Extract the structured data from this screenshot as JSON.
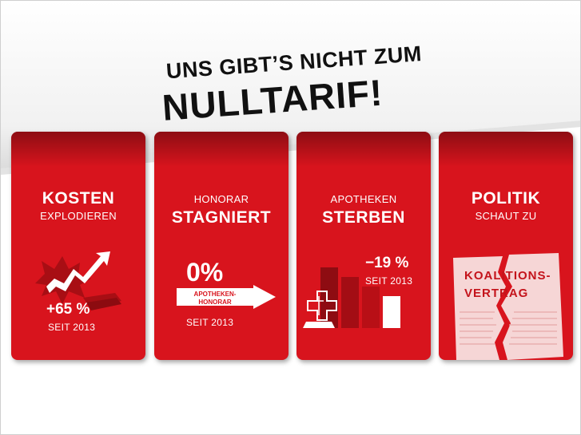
{
  "headline": {
    "line1": "UNS GIBT’S NICHT ZUM",
    "line2": "NULLTARIF!"
  },
  "colors": {
    "card_red": "#d8141d",
    "headline_text": "#111111"
  },
  "cards": [
    {
      "title_big": "KOSTEN",
      "title_small": "EXPLODIEREN",
      "stat": "+65 %",
      "since": "SEIT 2013",
      "icon": "explosion-rising-arrow-icon"
    },
    {
      "title_small": "HONORAR",
      "title_big": "STAGNIERT",
      "stat": "0%",
      "arrow_label_1": "APOTHEKEN-",
      "arrow_label_2": "HONORAR",
      "since": "SEIT 2013",
      "icon": "flat-arrow-icon"
    },
    {
      "title_small": "APOTHEKEN",
      "title_big": "STERBEN",
      "stat": "−19 %",
      "since": "SEIT 2013",
      "icon": "pharmacy-bars-icon"
    },
    {
      "title_big": "POLITIK",
      "title_small": "SCHAUT ZU",
      "paper_line_1": "KOALITIONS-",
      "paper_line_2": "VERTRAG",
      "icon": "torn-contract-icon"
    }
  ]
}
